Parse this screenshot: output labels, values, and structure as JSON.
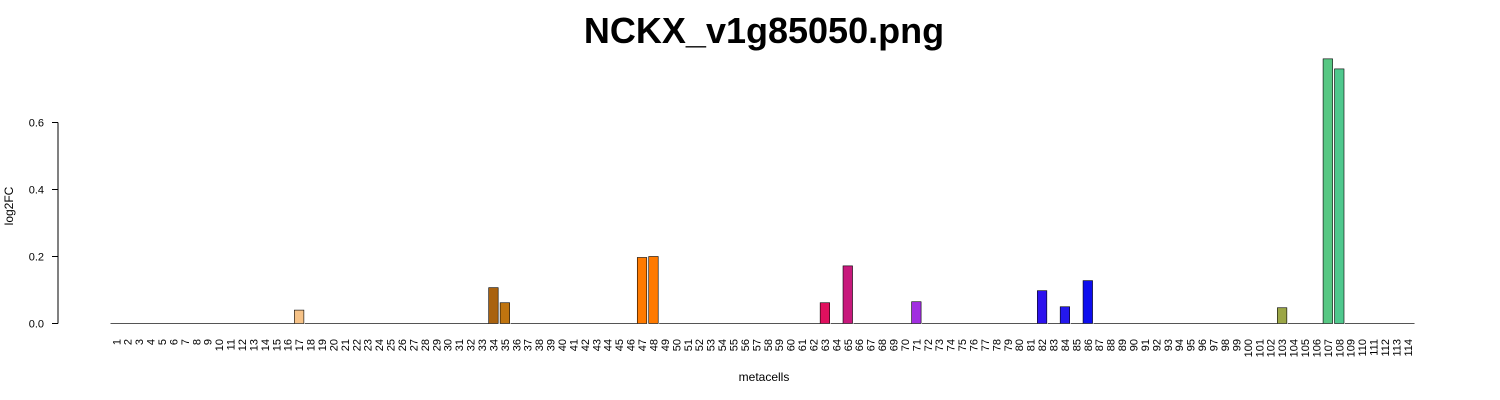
{
  "chart_data": {
    "type": "bar",
    "title": "NCKX_v1g85050.png",
    "xlabel": "metacells",
    "ylabel": "log2FC",
    "ylim": [
      0,
      0.78
    ],
    "yticks": [
      0.0,
      0.2,
      0.4,
      0.6
    ],
    "ytick_labels": [
      "0.0",
      "0.2",
      "0.4",
      "0.6"
    ],
    "grid": false,
    "legend": "none",
    "categories": [
      "1",
      "2",
      "3",
      "4",
      "5",
      "6",
      "7",
      "8",
      "9",
      "10",
      "11",
      "12",
      "13",
      "14",
      "15",
      "16",
      "17",
      "18",
      "19",
      "20",
      "21",
      "22",
      "23",
      "24",
      "25",
      "26",
      "27",
      "28",
      "29",
      "30",
      "31",
      "32",
      "33",
      "34",
      "35",
      "36",
      "37",
      "38",
      "39",
      "40",
      "41",
      "42",
      "43",
      "44",
      "45",
      "46",
      "47",
      "48",
      "49",
      "50",
      "51",
      "52",
      "53",
      "54",
      "55",
      "56",
      "57",
      "58",
      "59",
      "60",
      "61",
      "62",
      "63",
      "64",
      "65",
      "66",
      "67",
      "68",
      "69",
      "70",
      "71",
      "72",
      "73",
      "74",
      "75",
      "76",
      "77",
      "78",
      "79",
      "80",
      "81",
      "82",
      "83",
      "84",
      "85",
      "86",
      "87",
      "88",
      "89",
      "90",
      "91",
      "92",
      "93",
      "94",
      "95",
      "96",
      "97",
      "98",
      "99",
      "100",
      "101",
      "102",
      "103",
      "104",
      "105",
      "106",
      "107",
      "108",
      "109",
      "110",
      "111",
      "112",
      "113",
      "114"
    ],
    "values": [
      0,
      0,
      0,
      0,
      0,
      0,
      0,
      0,
      0,
      0,
      0,
      0,
      0,
      0,
      0,
      0,
      0.04,
      0,
      0,
      0,
      0,
      0,
      0,
      0,
      0,
      0,
      0,
      0,
      0,
      0,
      0,
      0,
      0,
      0.107,
      0.062,
      0,
      0,
      0,
      0,
      0,
      0,
      0,
      0,
      0,
      0,
      0,
      0.197,
      0.2,
      0,
      0,
      0,
      0,
      0,
      0,
      0,
      0,
      0,
      0,
      0,
      0,
      0,
      0,
      0.062,
      0,
      0.172,
      0,
      0,
      0,
      0,
      0,
      0.065,
      0,
      0,
      0,
      0,
      0,
      0,
      0,
      0,
      0,
      0,
      0.098,
      0,
      0.05,
      0,
      0.128,
      0,
      0,
      0,
      0,
      0,
      0,
      0,
      0,
      0,
      0,
      0,
      0,
      0,
      0,
      0,
      0,
      0.047,
      0,
      0,
      0,
      0.79,
      0.76,
      0,
      0,
      0,
      0,
      0,
      0
    ],
    "colors": [
      "#808080",
      "#808080",
      "#808080",
      "#808080",
      "#808080",
      "#808080",
      "#808080",
      "#808080",
      "#808080",
      "#808080",
      "#808080",
      "#808080",
      "#808080",
      "#808080",
      "#808080",
      "#808080",
      "#f6c287",
      "#808080",
      "#808080",
      "#808080",
      "#808080",
      "#808080",
      "#808080",
      "#808080",
      "#808080",
      "#808080",
      "#808080",
      "#808080",
      "#808080",
      "#808080",
      "#808080",
      "#808080",
      "#808080",
      "#a9620f",
      "#c0740f",
      "#808080",
      "#808080",
      "#808080",
      "#808080",
      "#808080",
      "#808080",
      "#808080",
      "#808080",
      "#808080",
      "#808080",
      "#808080",
      "#ff7a00",
      "#ff7a00",
      "#808080",
      "#808080",
      "#808080",
      "#808080",
      "#808080",
      "#808080",
      "#808080",
      "#808080",
      "#808080",
      "#808080",
      "#808080",
      "#808080",
      "#808080",
      "#808080",
      "#e0105e",
      "#808080",
      "#c7197c",
      "#808080",
      "#808080",
      "#808080",
      "#808080",
      "#808080",
      "#a12ee0",
      "#808080",
      "#808080",
      "#808080",
      "#808080",
      "#808080",
      "#808080",
      "#808080",
      "#808080",
      "#808080",
      "#808080",
      "#2d12ee",
      "#808080",
      "#2418ee",
      "#808080",
      "#0e0eee",
      "#808080",
      "#808080",
      "#808080",
      "#808080",
      "#808080",
      "#808080",
      "#808080",
      "#808080",
      "#808080",
      "#808080",
      "#808080",
      "#808080",
      "#808080",
      "#808080",
      "#808080",
      "#808080",
      "#9ba646",
      "#808080",
      "#808080",
      "#808080",
      "#57c783",
      "#4fc88d",
      "#808080",
      "#808080",
      "#808080",
      "#808080",
      "#808080",
      "#808080"
    ]
  }
}
